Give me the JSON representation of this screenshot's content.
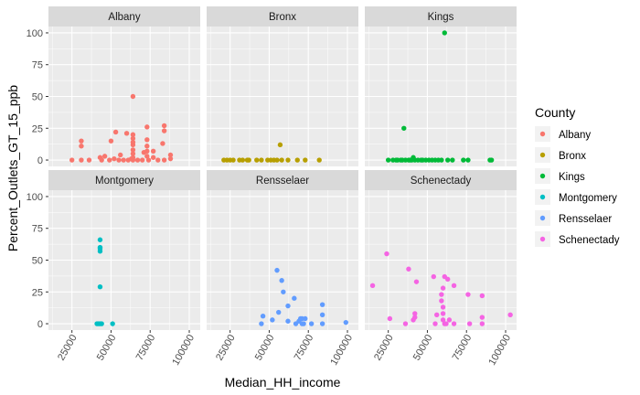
{
  "chart_data": {
    "type": "scatter",
    "xlabel": "Median_HH_income",
    "ylabel": "Percent_Outlets_GT_15_ppb",
    "xlim": [
      10000,
      107000
    ],
    "ylim": [
      -5,
      105
    ],
    "x_ticks": [
      25000,
      50000,
      75000,
      100000
    ],
    "x_tick_labels": [
      "25000",
      "50000",
      "75000",
      "100000"
    ],
    "y_ticks": [
      0,
      25,
      50,
      75,
      100
    ],
    "y_tick_labels": [
      "0",
      "25",
      "50",
      "75",
      "100"
    ],
    "grid": true,
    "legend": {
      "title": "County",
      "placement": "right",
      "entries": [
        "Albany",
        "Bronx",
        "Kings",
        "Montgomery",
        "Rensselaer",
        "Schenectady"
      ]
    },
    "colors": {
      "Albany": "#F8766D",
      "Bronx": "#B79F00",
      "Kings": "#00BA38",
      "Montgomery": "#00BFC4",
      "Rensselaer": "#619CFF",
      "Schenectady": "#F564E3"
    },
    "panel_background": "#EBEBEB",
    "strip_background": "#D9D9D9",
    "series": [
      {
        "name": "Albany",
        "points": [
          [
            25000,
            0
          ],
          [
            31000,
            15
          ],
          [
            31000,
            11
          ],
          [
            31000,
            0
          ],
          [
            36000,
            0
          ],
          [
            43000,
            2
          ],
          [
            44000,
            0
          ],
          [
            46000,
            3
          ],
          [
            49000,
            0
          ],
          [
            50000,
            15
          ],
          [
            52000,
            1
          ],
          [
            53000,
            22
          ],
          [
            55000,
            0
          ],
          [
            56000,
            4
          ],
          [
            58000,
            0
          ],
          [
            60000,
            21
          ],
          [
            61000,
            0
          ],
          [
            63000,
            1
          ],
          [
            64000,
            50
          ],
          [
            64000,
            20
          ],
          [
            64000,
            17
          ],
          [
            64000,
            14
          ],
          [
            64000,
            12
          ],
          [
            64000,
            8
          ],
          [
            64000,
            5
          ],
          [
            64000,
            2
          ],
          [
            64000,
            0
          ],
          [
            67000,
            0
          ],
          [
            70000,
            0
          ],
          [
            71000,
            6
          ],
          [
            73000,
            26
          ],
          [
            73000,
            16
          ],
          [
            73000,
            11
          ],
          [
            73000,
            7
          ],
          [
            73000,
            3
          ],
          [
            74000,
            0
          ],
          [
            77000,
            7
          ],
          [
            77000,
            2
          ],
          [
            80000,
            0
          ],
          [
            83000,
            13
          ],
          [
            84000,
            0
          ],
          [
            84000,
            27
          ],
          [
            84000,
            23
          ],
          [
            88000,
            1
          ],
          [
            88000,
            4
          ]
        ]
      },
      {
        "name": "Bronx",
        "points": [
          [
            21000,
            0
          ],
          [
            23000,
            0
          ],
          [
            25000,
            0
          ],
          [
            27000,
            0
          ],
          [
            31000,
            0
          ],
          [
            33000,
            0
          ],
          [
            36000,
            0
          ],
          [
            37000,
            0
          ],
          [
            42000,
            0
          ],
          [
            45000,
            0
          ],
          [
            49000,
            0
          ],
          [
            51000,
            0
          ],
          [
            53000,
            0
          ],
          [
            55000,
            0
          ],
          [
            57000,
            12
          ],
          [
            58000,
            0
          ],
          [
            62000,
            0
          ],
          [
            68000,
            0
          ],
          [
            73000,
            0
          ],
          [
            82000,
            0
          ]
        ]
      },
      {
        "name": "Kings",
        "points": [
          [
            25000,
            0
          ],
          [
            28000,
            0
          ],
          [
            30000,
            0
          ],
          [
            31000,
            0
          ],
          [
            33000,
            0
          ],
          [
            34000,
            0
          ],
          [
            35000,
            25
          ],
          [
            36000,
            0
          ],
          [
            38000,
            0
          ],
          [
            39000,
            0
          ],
          [
            40000,
            0
          ],
          [
            41000,
            2
          ],
          [
            42000,
            0
          ],
          [
            44000,
            0
          ],
          [
            46000,
            0
          ],
          [
            47000,
            0
          ],
          [
            49000,
            0
          ],
          [
            51000,
            0
          ],
          [
            53000,
            0
          ],
          [
            55000,
            0
          ],
          [
            57000,
            0
          ],
          [
            59000,
            0
          ],
          [
            61000,
            100
          ],
          [
            63000,
            0
          ],
          [
            66000,
            0
          ],
          [
            73000,
            0
          ],
          [
            76000,
            0
          ],
          [
            90000,
            0
          ],
          [
            91000,
            0
          ]
        ]
      },
      {
        "name": "Montgomery",
        "points": [
          [
            41000,
            0
          ],
          [
            42000,
            0
          ],
          [
            43000,
            0
          ],
          [
            43000,
            29
          ],
          [
            43000,
            57
          ],
          [
            43000,
            59
          ],
          [
            43000,
            60
          ],
          [
            43000,
            66
          ],
          [
            44000,
            0
          ],
          [
            51000,
            0
          ]
        ]
      },
      {
        "name": "Rensselaer",
        "points": [
          [
            45000,
            0
          ],
          [
            46000,
            6
          ],
          [
            52000,
            3
          ],
          [
            55000,
            42
          ],
          [
            56000,
            9
          ],
          [
            58000,
            34
          ],
          [
            59000,
            25
          ],
          [
            62000,
            14
          ],
          [
            62000,
            2
          ],
          [
            66000,
            20
          ],
          [
            67000,
            0
          ],
          [
            69000,
            2
          ],
          [
            70000,
            4
          ],
          [
            71000,
            4
          ],
          [
            71000,
            0
          ],
          [
            72000,
            0
          ],
          [
            73000,
            4
          ],
          [
            77000,
            0
          ],
          [
            84000,
            0
          ],
          [
            84000,
            7
          ],
          [
            84000,
            15
          ],
          [
            99000,
            1
          ]
        ]
      },
      {
        "name": "Schenectady",
        "points": [
          [
            15000,
            30
          ],
          [
            24000,
            55
          ],
          [
            26000,
            4
          ],
          [
            36000,
            0
          ],
          [
            38000,
            43
          ],
          [
            41000,
            3
          ],
          [
            42000,
            8
          ],
          [
            42000,
            5
          ],
          [
            43000,
            33
          ],
          [
            54000,
            37
          ],
          [
            55000,
            0
          ],
          [
            56000,
            7
          ],
          [
            59000,
            23
          ],
          [
            59000,
            18
          ],
          [
            60000,
            28
          ],
          [
            60000,
            13
          ],
          [
            60000,
            8
          ],
          [
            60000,
            3
          ],
          [
            61000,
            37
          ],
          [
            61000,
            0
          ],
          [
            62000,
            0
          ],
          [
            63000,
            35
          ],
          [
            64000,
            3
          ],
          [
            67000,
            30
          ],
          [
            67000,
            0
          ],
          [
            76000,
            23
          ],
          [
            77000,
            0
          ],
          [
            85000,
            22
          ],
          [
            85000,
            5
          ],
          [
            85000,
            0
          ],
          [
            103000,
            7
          ]
        ]
      }
    ]
  }
}
